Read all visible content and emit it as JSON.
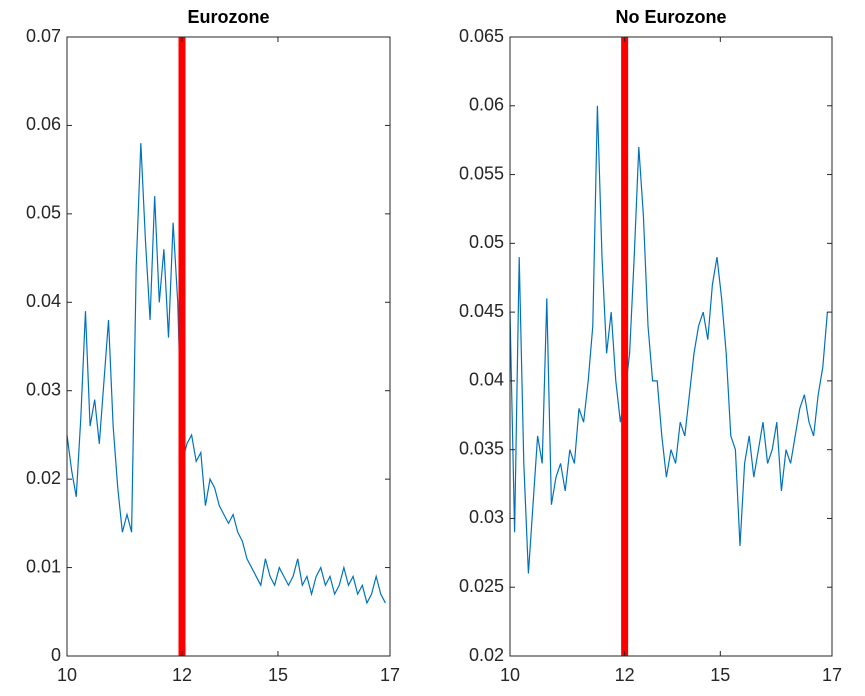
{
  "chart_data": [
    {
      "type": "line",
      "title": "Eurozone",
      "x": [
        0,
        25,
        50,
        75,
        100,
        125,
        150,
        175,
        200,
        225,
        250,
        275,
        300,
        325,
        350,
        375,
        400,
        425,
        450,
        475,
        500,
        525,
        550,
        575,
        600,
        625,
        650,
        675,
        700,
        725,
        750,
        775,
        800,
        825,
        850,
        875,
        900,
        925,
        950,
        975,
        1000,
        1025,
        1050,
        1075,
        1100,
        1125,
        1150,
        1175,
        1200,
        1225,
        1250,
        1275,
        1300,
        1325,
        1350,
        1375,
        1400,
        1425,
        1450,
        1475,
        1500,
        1525,
        1550,
        1575,
        1600,
        1625,
        1650,
        1675,
        1700,
        1725
      ],
      "series": [
        {
          "color": "#0072bd",
          "values": [
            0.025,
            0.021,
            0.018,
            0.027,
            0.039,
            0.026,
            0.029,
            0.024,
            0.031,
            0.038,
            0.026,
            0.019,
            0.014,
            0.016,
            0.014,
            0.044,
            0.058,
            0.047,
            0.038,
            0.052,
            0.04,
            0.046,
            0.036,
            0.049,
            0.04,
            0.022,
            0.024,
            0.025,
            0.022,
            0.023,
            0.017,
            0.02,
            0.019,
            0.017,
            0.016,
            0.015,
            0.016,
            0.014,
            0.013,
            0.011,
            0.01,
            0.009,
            0.008,
            0.011,
            0.009,
            0.008,
            0.01,
            0.009,
            0.008,
            0.009,
            0.011,
            0.008,
            0.009,
            0.007,
            0.009,
            0.01,
            0.008,
            0.009,
            0.007,
            0.008,
            0.01,
            0.008,
            0.009,
            0.007,
            0.008,
            0.006,
            0.007,
            0.009,
            0.007,
            0.006
          ]
        }
      ],
      "xlim": [
        0,
        1750
      ],
      "xticks": [
        {
          "value": 0,
          "label": "10"
        },
        {
          "value": 623,
          "label": "12"
        },
        {
          "value": 1143,
          "label": "15"
        },
        {
          "value": 1750,
          "label": "17"
        }
      ],
      "ylim": [
        0,
        0.07
      ],
      "yticks": [
        0,
        0.01,
        0.02,
        0.03,
        0.04,
        0.05,
        0.06,
        0.07
      ],
      "vline": 623,
      "vline_color": "#ff0000"
    },
    {
      "type": "line",
      "title": "No Eurozone",
      "x": [
        0,
        25,
        50,
        75,
        100,
        125,
        150,
        175,
        200,
        225,
        250,
        275,
        300,
        325,
        350,
        375,
        400,
        425,
        450,
        475,
        500,
        525,
        550,
        575,
        600,
        625,
        650,
        675,
        700,
        725,
        750,
        775,
        800,
        825,
        850,
        875,
        900,
        925,
        950,
        975,
        1000,
        1025,
        1050,
        1075,
        1100,
        1125,
        1150,
        1175,
        1200,
        1225,
        1250,
        1275,
        1300,
        1325,
        1350,
        1375,
        1400,
        1425,
        1450,
        1475,
        1500,
        1525,
        1550,
        1575,
        1600,
        1625,
        1650,
        1675,
        1700,
        1725
      ],
      "series": [
        {
          "color": "#0072bd",
          "values": [
            0.045,
            0.029,
            0.049,
            0.034,
            0.026,
            0.031,
            0.036,
            0.034,
            0.046,
            0.031,
            0.033,
            0.034,
            0.032,
            0.035,
            0.034,
            0.038,
            0.037,
            0.04,
            0.044,
            0.06,
            0.049,
            0.042,
            0.045,
            0.04,
            0.037,
            0.039,
            0.042,
            0.049,
            0.057,
            0.052,
            0.044,
            0.04,
            0.04,
            0.036,
            0.033,
            0.035,
            0.034,
            0.037,
            0.036,
            0.039,
            0.042,
            0.044,
            0.045,
            0.043,
            0.047,
            0.049,
            0.046,
            0.042,
            0.036,
            0.035,
            0.028,
            0.034,
            0.036,
            0.033,
            0.035,
            0.037,
            0.034,
            0.035,
            0.037,
            0.032,
            0.035,
            0.034,
            0.036,
            0.038,
            0.039,
            0.037,
            0.036,
            0.039,
            0.041,
            0.045
          ]
        }
      ],
      "xlim": [
        0,
        1750
      ],
      "xticks": [
        {
          "value": 0,
          "label": "10"
        },
        {
          "value": 623,
          "label": "12"
        },
        {
          "value": 1143,
          "label": "15"
        },
        {
          "value": 1750,
          "label": "17"
        }
      ],
      "ylim": [
        0.02,
        0.065
      ],
      "yticks": [
        0.02,
        0.025,
        0.03,
        0.035,
        0.04,
        0.045,
        0.05,
        0.055,
        0.06,
        0.065
      ],
      "vline": 623,
      "vline_color": "#ff0000"
    }
  ]
}
